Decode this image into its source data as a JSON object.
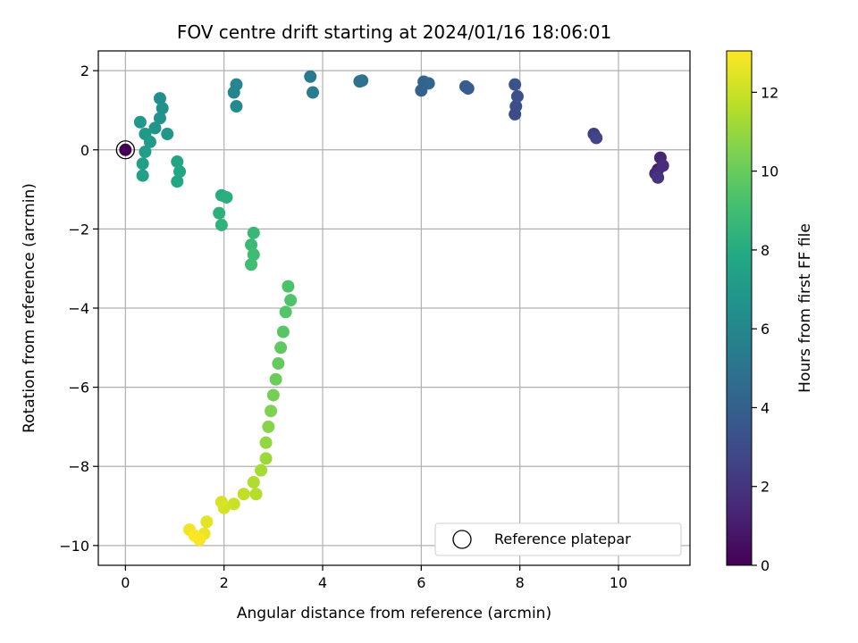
{
  "chart_data": {
    "type": "scatter",
    "title": "FOV centre drift starting at 2024/01/16 18:06:01",
    "xlabel": "Angular distance from reference (arcmin)",
    "ylabel": "Rotation from reference (arcmin)",
    "xlim": [
      -0.55,
      11.45
    ],
    "ylim": [
      -10.5,
      2.5
    ],
    "xticks": [
      0,
      2,
      4,
      6,
      8,
      10
    ],
    "yticks": [
      -10,
      -8,
      -6,
      -4,
      -2,
      0,
      2
    ],
    "grid": true,
    "colormap": "viridis",
    "colorbar": {
      "label": "Hours from first FF file",
      "range": [
        0,
        13.05
      ],
      "ticks": [
        0,
        2,
        4,
        6,
        8,
        10,
        12
      ]
    },
    "reference": {
      "x": 0,
      "y": 0,
      "label": "Reference platepar"
    },
    "legend_position": "lower-right",
    "series": [
      {
        "x": 10.8,
        "y": -0.5,
        "c": 1.0
      },
      {
        "x": 10.85,
        "y": -0.2,
        "c": 1.3
      },
      {
        "x": 10.75,
        "y": -0.6,
        "c": 1.5
      },
      {
        "x": 10.9,
        "y": -0.4,
        "c": 1.7
      },
      {
        "x": 10.8,
        "y": -0.7,
        "c": 1.9
      },
      {
        "x": 9.5,
        "y": 0.4,
        "c": 2.4
      },
      {
        "x": 9.55,
        "y": 0.3,
        "c": 2.6
      },
      {
        "x": 7.9,
        "y": 0.9,
        "c": 3.0
      },
      {
        "x": 7.92,
        "y": 1.1,
        "c": 3.1
      },
      {
        "x": 7.95,
        "y": 1.35,
        "c": 3.2
      },
      {
        "x": 7.9,
        "y": 1.65,
        "c": 3.3
      },
      {
        "x": 6.9,
        "y": 1.6,
        "c": 3.7
      },
      {
        "x": 6.95,
        "y": 1.55,
        "c": 3.8
      },
      {
        "x": 6.0,
        "y": 1.5,
        "c": 4.1
      },
      {
        "x": 6.05,
        "y": 1.72,
        "c": 4.2
      },
      {
        "x": 6.15,
        "y": 1.68,
        "c": 4.3
      },
      {
        "x": 4.8,
        "y": 1.75,
        "c": 4.8
      },
      {
        "x": 4.75,
        "y": 1.73,
        "c": 4.9
      },
      {
        "x": 3.75,
        "y": 1.85,
        "c": 5.3
      },
      {
        "x": 3.8,
        "y": 1.45,
        "c": 5.4
      },
      {
        "x": 2.2,
        "y": 1.45,
        "c": 5.9
      },
      {
        "x": 2.25,
        "y": 1.65,
        "c": 6.0
      },
      {
        "x": 2.25,
        "y": 1.1,
        "c": 6.1
      },
      {
        "x": 0.7,
        "y": 1.3,
        "c": 6.4
      },
      {
        "x": 0.75,
        "y": 1.05,
        "c": 6.5
      },
      {
        "x": 0.7,
        "y": 0.8,
        "c": 6.6
      },
      {
        "x": 0.6,
        "y": 0.55,
        "c": 6.7
      },
      {
        "x": 0.85,
        "y": 0.4,
        "c": 6.8
      },
      {
        "x": 0.3,
        "y": 0.7,
        "c": 6.9
      },
      {
        "x": 0.4,
        "y": 0.4,
        "c": 7.0
      },
      {
        "x": 0.5,
        "y": 0.2,
        "c": 7.1
      },
      {
        "x": 0.4,
        "y": -0.05,
        "c": 7.2
      },
      {
        "x": 0.35,
        "y": -0.35,
        "c": 7.3
      },
      {
        "x": 0.35,
        "y": -0.65,
        "c": 7.4
      },
      {
        "x": 1.05,
        "y": -0.3,
        "c": 7.6
      },
      {
        "x": 1.1,
        "y": -0.55,
        "c": 7.7
      },
      {
        "x": 1.05,
        "y": -0.8,
        "c": 7.8
      },
      {
        "x": 1.95,
        "y": -1.15,
        "c": 8.1
      },
      {
        "x": 2.05,
        "y": -1.2,
        "c": 8.2
      },
      {
        "x": 1.9,
        "y": -1.6,
        "c": 8.3
      },
      {
        "x": 1.95,
        "y": -1.9,
        "c": 8.4
      },
      {
        "x": 2.6,
        "y": -2.1,
        "c": 8.7
      },
      {
        "x": 2.55,
        "y": -2.4,
        "c": 8.8
      },
      {
        "x": 2.6,
        "y": -2.65,
        "c": 8.9
      },
      {
        "x": 2.55,
        "y": -2.9,
        "c": 9.0
      },
      {
        "x": 3.3,
        "y": -3.45,
        "c": 9.3
      },
      {
        "x": 3.35,
        "y": -3.8,
        "c": 9.4
      },
      {
        "x": 3.25,
        "y": -4.1,
        "c": 9.5
      },
      {
        "x": 3.2,
        "y": -4.6,
        "c": 9.6
      },
      {
        "x": 3.15,
        "y": -5.0,
        "c": 9.8
      },
      {
        "x": 3.1,
        "y": -5.4,
        "c": 9.9
      },
      {
        "x": 3.05,
        "y": -5.8,
        "c": 10.1
      },
      {
        "x": 3.0,
        "y": -6.2,
        "c": 10.3
      },
      {
        "x": 2.95,
        "y": -6.6,
        "c": 10.5
      },
      {
        "x": 2.9,
        "y": -7.0,
        "c": 10.7
      },
      {
        "x": 2.85,
        "y": -7.4,
        "c": 10.9
      },
      {
        "x": 2.85,
        "y": -7.8,
        "c": 11.1
      },
      {
        "x": 2.75,
        "y": -8.1,
        "c": 11.3
      },
      {
        "x": 2.6,
        "y": -8.4,
        "c": 11.5
      },
      {
        "x": 2.65,
        "y": -8.7,
        "c": 11.6
      },
      {
        "x": 2.4,
        "y": -8.7,
        "c": 11.8
      },
      {
        "x": 2.2,
        "y": -8.95,
        "c": 12.0
      },
      {
        "x": 2.0,
        "y": -9.05,
        "c": 12.2
      },
      {
        "x": 1.95,
        "y": -8.9,
        "c": 12.3
      },
      {
        "x": 1.65,
        "y": -9.4,
        "c": 12.5
      },
      {
        "x": 1.6,
        "y": -9.7,
        "c": 12.7
      },
      {
        "x": 1.3,
        "y": -9.6,
        "c": 12.8
      },
      {
        "x": 1.5,
        "y": -9.85,
        "c": 12.9
      },
      {
        "x": 1.4,
        "y": -9.75,
        "c": 13.0
      }
    ]
  }
}
